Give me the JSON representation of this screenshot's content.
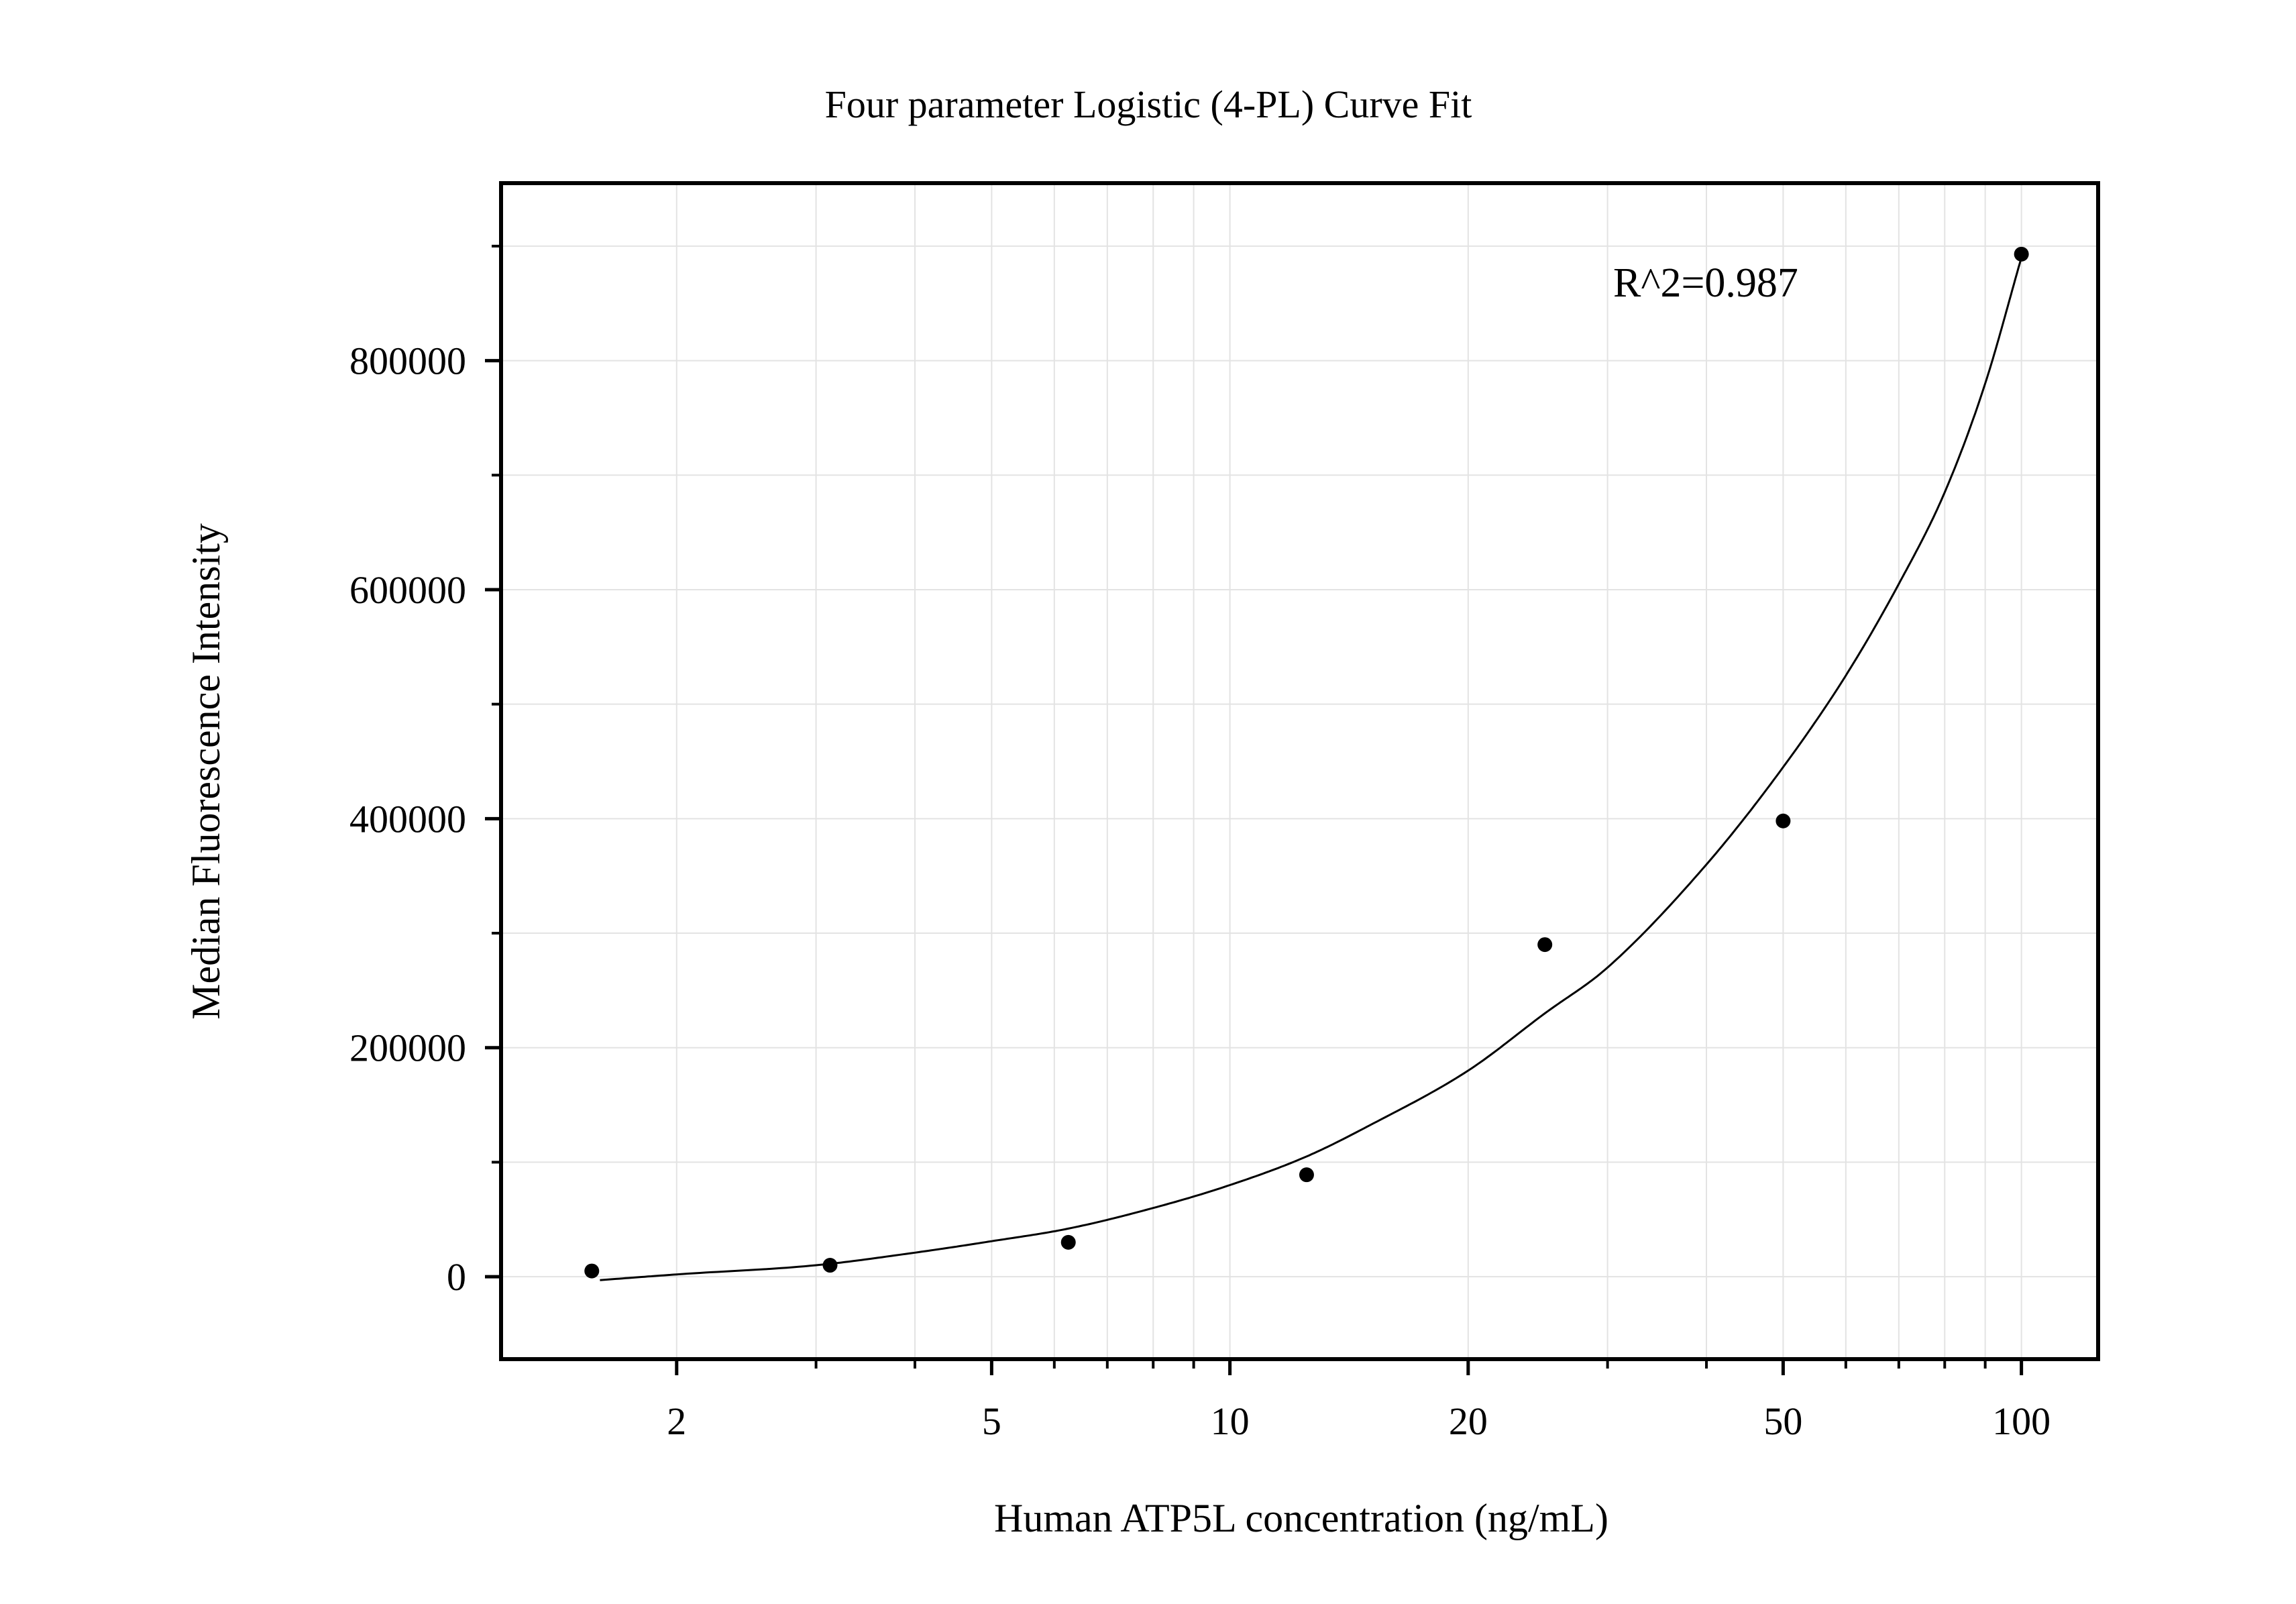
{
  "chart_data": {
    "type": "scatter",
    "title": "Four parameter Logistic (4-PL) Curve Fit",
    "xlabel": "Human ATP5L concentration (ng/mL)",
    "ylabel": "Median Fluorescence Intensity",
    "x_scale": "log",
    "xlim": [
      1.2,
      125
    ],
    "ylim": [
      -72000,
      955000
    ],
    "x_ticks": [
      2,
      5,
      10,
      20,
      50,
      100
    ],
    "x_tick_labels": [
      "2",
      "5",
      "10",
      "20",
      "50",
      "100"
    ],
    "y_ticks": [
      0,
      200000,
      400000,
      600000,
      800000
    ],
    "y_tick_labels": [
      "0",
      "200000",
      "400000",
      "600000",
      "800000"
    ],
    "grid": true,
    "annotation": "R^2=0.987",
    "points": [
      {
        "x": 1.5625,
        "y": 5000
      },
      {
        "x": 3.125,
        "y": 10000
      },
      {
        "x": 6.25,
        "y": 30000
      },
      {
        "x": 12.5,
        "y": 89000
      },
      {
        "x": 25,
        "y": 290000
      },
      {
        "x": 50,
        "y": 398000
      },
      {
        "x": 100,
        "y": 893000
      }
    ],
    "fit_curve": [
      {
        "x": 1.6,
        "y": -3000
      },
      {
        "x": 2,
        "y": 2000
      },
      {
        "x": 3,
        "y": 10000
      },
      {
        "x": 4,
        "y": 21000
      },
      {
        "x": 5,
        "y": 31000
      },
      {
        "x": 6.25,
        "y": 42000
      },
      {
        "x": 8,
        "y": 60000
      },
      {
        "x": 10,
        "y": 80000
      },
      {
        "x": 12.5,
        "y": 105000
      },
      {
        "x": 15,
        "y": 132000
      },
      {
        "x": 20,
        "y": 180000
      },
      {
        "x": 25,
        "y": 230000
      },
      {
        "x": 30,
        "y": 270000
      },
      {
        "x": 40,
        "y": 360000
      },
      {
        "x": 50,
        "y": 445000
      },
      {
        "x": 60,
        "y": 525000
      },
      {
        "x": 70,
        "y": 605000
      },
      {
        "x": 80,
        "y": 685000
      },
      {
        "x": 90,
        "y": 780000
      },
      {
        "x": 100,
        "y": 890000
      }
    ],
    "colors": {
      "points": "#000000",
      "curve": "#000000",
      "grid": "#e3e3e3",
      "axes": "#000000"
    }
  }
}
